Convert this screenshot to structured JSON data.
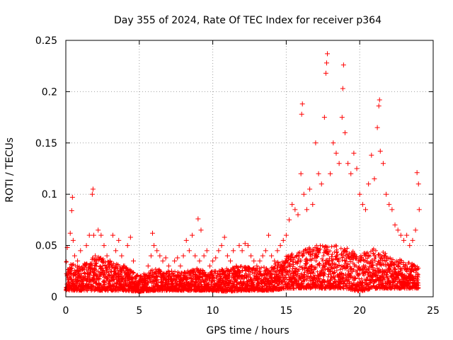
{
  "chart_data": {
    "type": "scatter",
    "title": "Day 355 of 2024, Rate Of TEC Index for receiver p364",
    "xlabel": "GPS time / hours",
    "ylabel": "ROTI / TECUs",
    "xlim": [
      0,
      25
    ],
    "ylim": [
      0,
      0.25
    ],
    "x_ticks": [
      0,
      5,
      10,
      15,
      20,
      25
    ],
    "x_tick_labels": [
      "0",
      "5",
      "10",
      "15",
      "20",
      "25"
    ],
    "y_ticks": [
      0,
      0.05,
      0.1,
      0.15,
      0.2,
      0.25
    ],
    "y_tick_labels": [
      "0",
      "0.05",
      "0.1",
      "0.15",
      "0.2",
      "0.25"
    ],
    "grid": true,
    "marker": "+",
    "series": [
      {
        "name": "ROTI",
        "color": "#ff0000",
        "x": [
          0.1,
          0.3,
          0.4,
          0.45,
          0.5,
          0.6,
          0.8,
          1.0,
          1.2,
          1.4,
          1.6,
          1.8,
          1.85,
          1.9,
          2.0,
          2.2,
          2.4,
          2.6,
          2.8,
          3.0,
          3.2,
          3.4,
          3.6,
          3.8,
          4.0,
          4.2,
          4.4,
          4.6,
          4.8,
          5.0,
          5.2,
          5.4,
          5.6,
          5.8,
          5.9,
          6.0,
          6.2,
          6.4,
          6.6,
          6.8,
          7.0,
          7.2,
          7.4,
          7.6,
          7.8,
          8.0,
          8.2,
          8.4,
          8.6,
          8.8,
          9.0,
          9.1,
          9.2,
          9.4,
          9.6,
          9.8,
          10.0,
          10.2,
          10.4,
          10.6,
          10.8,
          11.0,
          11.2,
          11.4,
          11.6,
          11.8,
          12.0,
          12.2,
          12.4,
          12.6,
          12.8,
          13.0,
          13.2,
          13.4,
          13.6,
          13.8,
          14.0,
          14.2,
          14.4,
          14.6,
          14.8,
          15.0,
          15.2,
          15.4,
          15.6,
          15.8,
          16.0,
          16.05,
          16.1,
          16.2,
          16.4,
          16.6,
          16.8,
          17.0,
          17.2,
          17.4,
          17.6,
          17.7,
          17.75,
          17.8,
          18.0,
          18.2,
          18.4,
          18.6,
          18.8,
          18.85,
          18.9,
          19.0,
          19.2,
          19.4,
          19.6,
          19.8,
          20.0,
          20.2,
          20.4,
          20.6,
          20.8,
          21.0,
          21.2,
          21.3,
          21.35,
          21.4,
          21.6,
          21.8,
          22.0,
          22.2,
          22.4,
          22.6,
          22.8,
          23.0,
          23.2,
          23.4,
          23.6,
          23.8,
          23.9,
          24.0,
          24.05
        ],
        "y": [
          0.048,
          0.062,
          0.084,
          0.097,
          0.055,
          0.04,
          0.035,
          0.045,
          0.03,
          0.05,
          0.06,
          0.1,
          0.105,
          0.06,
          0.04,
          0.065,
          0.06,
          0.05,
          0.04,
          0.035,
          0.06,
          0.045,
          0.055,
          0.04,
          0.03,
          0.05,
          0.058,
          0.035,
          0.02,
          0.015,
          0.018,
          0.02,
          0.03,
          0.04,
          0.062,
          0.05,
          0.045,
          0.04,
          0.035,
          0.038,
          0.03,
          0.025,
          0.035,
          0.038,
          0.03,
          0.04,
          0.055,
          0.045,
          0.06,
          0.04,
          0.076,
          0.035,
          0.065,
          0.04,
          0.045,
          0.03,
          0.035,
          0.038,
          0.045,
          0.05,
          0.058,
          0.04,
          0.035,
          0.045,
          0.03,
          0.05,
          0.045,
          0.052,
          0.05,
          0.04,
          0.035,
          0.03,
          0.035,
          0.04,
          0.045,
          0.06,
          0.04,
          0.035,
          0.045,
          0.05,
          0.055,
          0.06,
          0.075,
          0.09,
          0.085,
          0.08,
          0.12,
          0.178,
          0.188,
          0.1,
          0.085,
          0.105,
          0.09,
          0.15,
          0.12,
          0.11,
          0.175,
          0.218,
          0.228,
          0.237,
          0.12,
          0.15,
          0.14,
          0.13,
          0.175,
          0.203,
          0.226,
          0.16,
          0.13,
          0.12,
          0.14,
          0.125,
          0.1,
          0.09,
          0.085,
          0.11,
          0.138,
          0.115,
          0.165,
          0.186,
          0.192,
          0.142,
          0.13,
          0.1,
          0.09,
          0.085,
          0.07,
          0.065,
          0.06,
          0.055,
          0.06,
          0.05,
          0.055,
          0.065,
          0.121,
          0.11,
          0.085
        ]
      }
    ],
    "noise_band": {
      "x": [
        0,
        1,
        2,
        3,
        4,
        5,
        6,
        7,
        8,
        9,
        10,
        11,
        12,
        13,
        14,
        15,
        16,
        17,
        18,
        19,
        20,
        21,
        22,
        23,
        24
      ],
      "low": [
        0.006,
        0.006,
        0.006,
        0.006,
        0.006,
        0.005,
        0.006,
        0.006,
        0.006,
        0.006,
        0.006,
        0.005,
        0.006,
        0.006,
        0.006,
        0.008,
        0.008,
        0.008,
        0.008,
        0.008,
        0.005,
        0.008,
        0.008,
        0.008,
        0.008
      ],
      "high": [
        0.035,
        0.03,
        0.04,
        0.035,
        0.03,
        0.02,
        0.028,
        0.025,
        0.025,
        0.028,
        0.025,
        0.028,
        0.03,
        0.028,
        0.03,
        0.04,
        0.045,
        0.05,
        0.05,
        0.05,
        0.04,
        0.05,
        0.04,
        0.035,
        0.03
      ]
    }
  }
}
